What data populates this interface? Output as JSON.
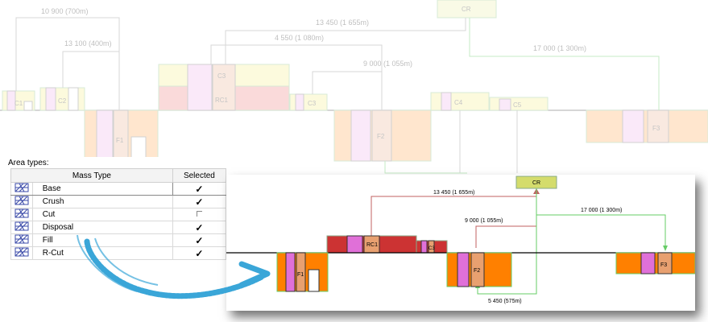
{
  "background_diagram": {
    "flows": [
      {
        "label": "10 900 (700m)"
      },
      {
        "label": "13 100 (400m)"
      },
      {
        "label": "13 450 (1 655m)"
      },
      {
        "label": "4 550 (1 080m)"
      },
      {
        "label": "9 000 (1 055m)"
      },
      {
        "label": "17 000 (1 300m)"
      }
    ],
    "nodes": {
      "cr": "CR",
      "c1": "C1",
      "c2": "C2",
      "c3": "C3",
      "rc1": "RC1",
      "c3b": "C3",
      "c4": "C4",
      "c5": "C5",
      "f1": "F1",
      "f2": "F2",
      "f3": "F3"
    }
  },
  "area_types": {
    "title": "Area types:",
    "columns": {
      "mass_type": "Mass Type",
      "selected": "Selected"
    },
    "rows": [
      {
        "name": "Base",
        "selected": true
      },
      {
        "name": "Crush",
        "selected": true
      },
      {
        "name": "Cut",
        "selected": false
      },
      {
        "name": "Disposal",
        "selected": true
      },
      {
        "name": "Fill",
        "selected": true
      },
      {
        "name": "R-Cut",
        "selected": true
      }
    ],
    "check_glyph": "✓"
  },
  "foreground_diagram": {
    "flows": [
      {
        "label": "13 450 (1 655m)"
      },
      {
        "label": "9 000 (1 055m)"
      },
      {
        "label": "17 000 (1 300m)"
      },
      {
        "label": "5 450 (575m)"
      }
    ],
    "nodes": {
      "cr": "CR",
      "rc1": "RC1",
      "c3": "C3",
      "f1": "F1",
      "f2": "F2",
      "f3": "F3"
    }
  },
  "colors": {
    "fill_orange": "#ff8000",
    "magenta": "#e070d8",
    "tan": "#e8a070",
    "cut_red": "#cc3333",
    "cr_yellow": "#d4dc6c",
    "flow_red": "#c06060",
    "flow_green": "#66cc66",
    "flow_gray": "#999999",
    "arrow_blue": "#3aa6d8"
  }
}
